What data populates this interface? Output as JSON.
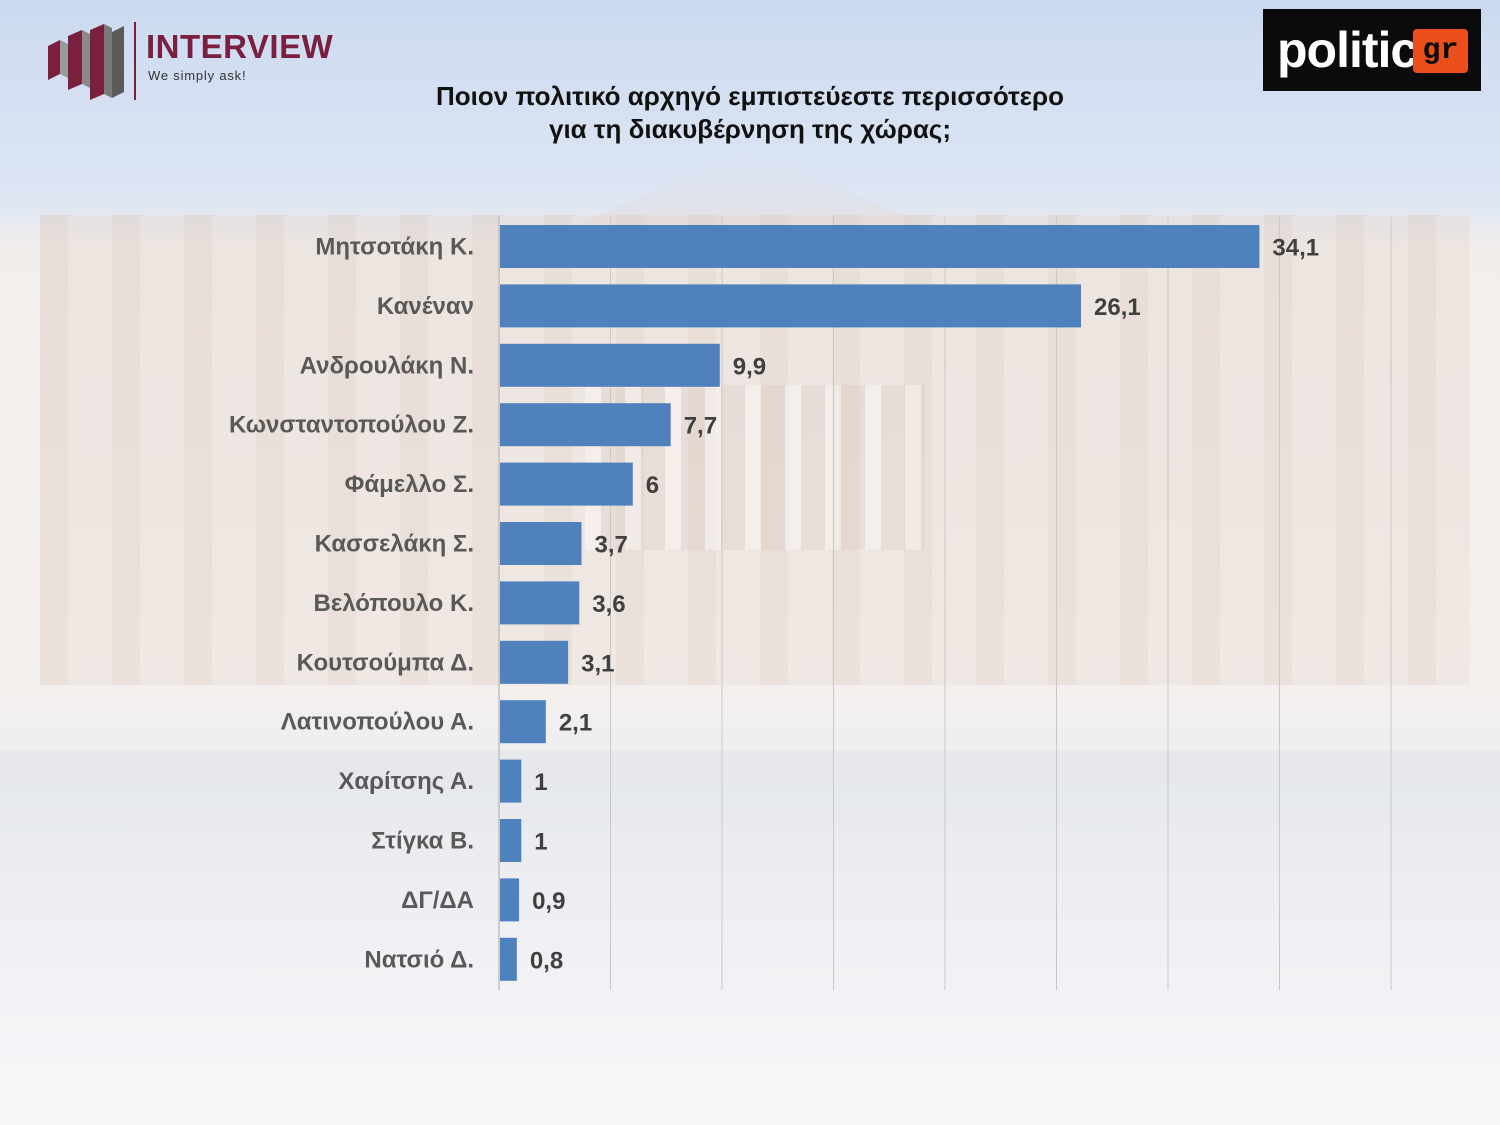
{
  "brand": {
    "interview_name": "INTERVIEW",
    "interview_tagline": "We simply ask!",
    "interview_color": "#7a1f3d",
    "politic_name": "politic",
    "politic_suffix": "gr",
    "politic_accent": "#e94e1b"
  },
  "header": {
    "title_line1": "Ποιον πολιτικό αρχηγό εμπιστεύεστε περισσότερο",
    "title_line2": "για τη διακυβέρνηση της χώρας;"
  },
  "chart_data": {
    "type": "bar",
    "orientation": "horizontal",
    "title": "Ποιον πολιτικό αρχηγό εμπιστεύεστε περισσότερο για τη διακυβέρνηση της χώρας;",
    "categories": [
      "Μητσοτάκη Κ.",
      "Κανέναν",
      "Ανδρουλάκη Ν.",
      "Κωνσταντοπούλου Ζ.",
      "Φάμελλο Σ.",
      "Κασσελάκη Σ.",
      "Βελόπουλο Κ.",
      "Κουτσούμπα Δ.",
      "Λατινοπούλου Α.",
      "Χαρίτσης Α.",
      "Στίγκα Β.",
      "ΔΓ/ΔΑ",
      "Νατσιό Δ."
    ],
    "values": [
      34.1,
      26.1,
      9.9,
      7.7,
      6,
      3.7,
      3.6,
      3.1,
      2.1,
      1,
      1,
      0.9,
      0.8
    ],
    "value_labels": [
      "34,1",
      "26,1",
      "9,9",
      "7,7",
      "6",
      "3,7",
      "3,6",
      "3,1",
      "2,1",
      "1",
      "1",
      "0,9",
      "0,8"
    ],
    "xlim": [
      0,
      40
    ],
    "gridlines": true,
    "bar_color": "#4f81bd",
    "xlabel": "",
    "ylabel": ""
  }
}
